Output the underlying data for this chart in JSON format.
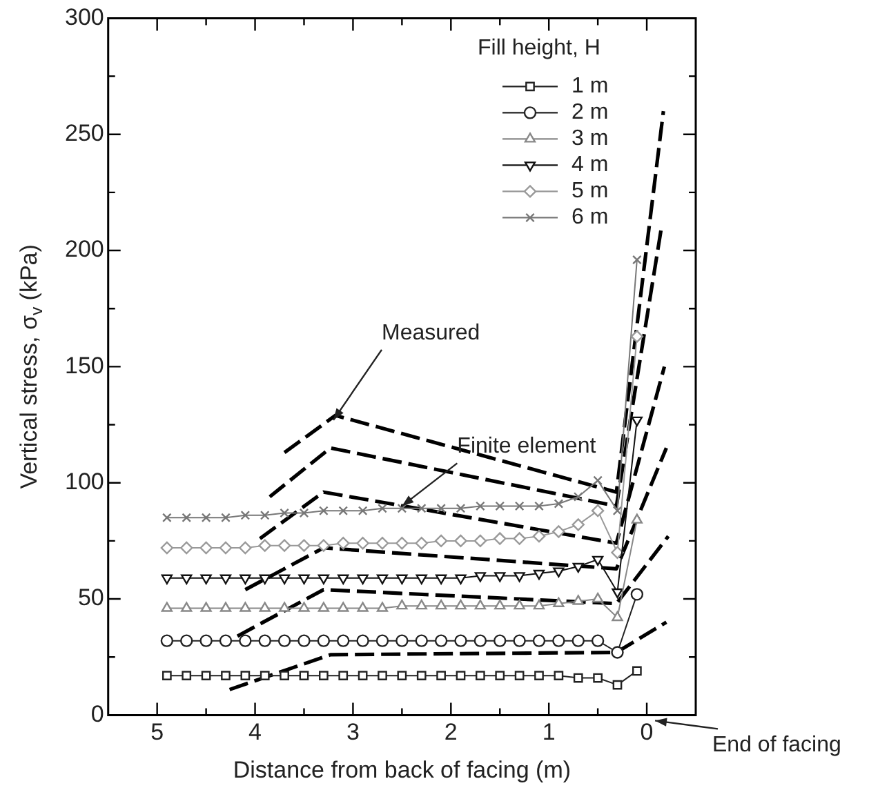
{
  "chart_data": {
    "type": "line",
    "xlabel": "Distance from back of facing (m)",
    "ylabel": "Vertical stress, σ$_{v}$ (kPa)",
    "legend_title": "Fill height, H",
    "legend": "top right",
    "grid": false,
    "xlim": [
      5.5,
      -0.5
    ],
    "xticks": [
      5,
      {
        "value": 4.5,
        "label": null
      },
      4,
      {
        "value": 3.5,
        "label": null
      },
      3,
      {
        "value": 2.5,
        "label": null
      },
      2,
      {
        "value": 1.5,
        "label": null
      },
      1,
      {
        "value": 0.5,
        "label": null
      },
      0
    ],
    "ylim": [
      0,
      300
    ],
    "yticks": [
      0,
      {
        "value": 25,
        "label": null
      },
      50,
      {
        "value": 75,
        "label": null
      },
      100,
      {
        "value": 125,
        "label": null
      },
      150,
      {
        "value": 175,
        "label": null
      },
      200,
      {
        "value": 225,
        "label": null
      },
      250,
      {
        "value": 275,
        "label": null
      },
      300
    ],
    "x": [
      4.9,
      4.7,
      4.5,
      4.3,
      4.1,
      3.9,
      3.7,
      3.5,
      3.3,
      3.1,
      2.9,
      2.7,
      2.5,
      2.3,
      2.1,
      1.9,
      1.7,
      1.5,
      1.3,
      1.1,
      0.9,
      0.7,
      0.5,
      0.3,
      0.1
    ],
    "series": [
      {
        "name": "1 m",
        "color": "#222222",
        "marker": "square",
        "line_style": "solid",
        "values": [
          17,
          17,
          17,
          17,
          17,
          17,
          17,
          17,
          17,
          17,
          17,
          17,
          17,
          17,
          17,
          17,
          17,
          17,
          17,
          17,
          17,
          16,
          16,
          13,
          19
        ]
      },
      {
        "name": "2 m",
        "color": "#222222",
        "marker": "circle",
        "line_style": "solid",
        "values": [
          32,
          32,
          32,
          32,
          32,
          32,
          32,
          32,
          32,
          32,
          32,
          32,
          32,
          32,
          32,
          32,
          32,
          32,
          32,
          32,
          32,
          32,
          32,
          27,
          52
        ]
      },
      {
        "name": "3 m",
        "color": "#888888",
        "marker": "triangle",
        "line_style": "solid",
        "values": [
          46,
          46,
          46,
          46,
          46,
          46,
          46,
          46,
          46,
          46,
          46,
          46,
          47,
          47,
          47,
          47,
          47,
          47,
          47,
          47,
          48,
          49,
          50,
          42,
          84
        ]
      },
      {
        "name": "4 m",
        "color": "#111111",
        "marker": "triangle-down",
        "line_style": "solid",
        "values": [
          59,
          59,
          59,
          59,
          59,
          59,
          59,
          59,
          59,
          59,
          59,
          59,
          59,
          59,
          59,
          59,
          60,
          60,
          60,
          61,
          62,
          64,
          67,
          53,
          127
        ]
      },
      {
        "name": "5 m",
        "color": "#999999",
        "marker": "diamond",
        "line_style": "solid",
        "values": [
          72,
          72,
          72,
          72,
          72,
          73,
          73,
          73,
          73,
          74,
          74,
          74,
          74,
          74,
          75,
          75,
          75,
          76,
          76,
          77,
          79,
          82,
          88,
          70,
          163
        ]
      },
      {
        "name": "6 m",
        "color": "#777777",
        "marker": "cross",
        "line_style": "solid",
        "values": [
          85,
          85,
          85,
          85,
          86,
          86,
          87,
          87,
          88,
          88,
          88,
          89,
          89,
          89,
          89,
          89,
          90,
          90,
          90,
          90,
          91,
          94,
          101,
          88,
          196
        ]
      },
      {
        "color": "#000000",
        "marker": "none",
        "line_style": "dashed",
        "x": [
          4.26,
          3.23,
          0.31,
          -0.2
        ],
        "values": [
          11,
          26,
          27,
          40
        ]
      },
      {
        "color": "#000000",
        "marker": "none",
        "line_style": "dashed",
        "x": [
          4.18,
          3.3,
          0.31,
          -0.22
        ],
        "values": [
          34,
          54,
          48,
          77
        ]
      },
      {
        "color": "#000000",
        "marker": "none",
        "line_style": "dashed",
        "x": [
          4.1,
          3.3,
          0.31,
          -0.2
        ],
        "values": [
          54,
          72,
          63,
          115
        ]
      },
      {
        "color": "#000000",
        "marker": "none",
        "line_style": "dashed",
        "x": [
          3.95,
          3.3,
          0.31,
          -0.18
        ],
        "values": [
          76,
          96,
          74,
          150
        ]
      },
      {
        "color": "#000000",
        "marker": "none",
        "line_style": "dashed",
        "x": [
          3.85,
          3.23,
          0.31,
          -0.15
        ],
        "values": [
          94,
          115,
          90,
          210
        ]
      },
      {
        "color": "#000000",
        "marker": "none",
        "line_style": "dashed",
        "x": [
          3.7,
          3.18,
          0.31,
          -0.17
        ],
        "values": [
          113,
          129,
          96,
          260
        ]
      }
    ],
    "annotations": [
      {
        "text": "Measured",
        "x": 3.2,
        "y": 127
      },
      {
        "text": "Finite element",
        "x": 2.5,
        "y": 90
      },
      "End of facing"
    ]
  }
}
